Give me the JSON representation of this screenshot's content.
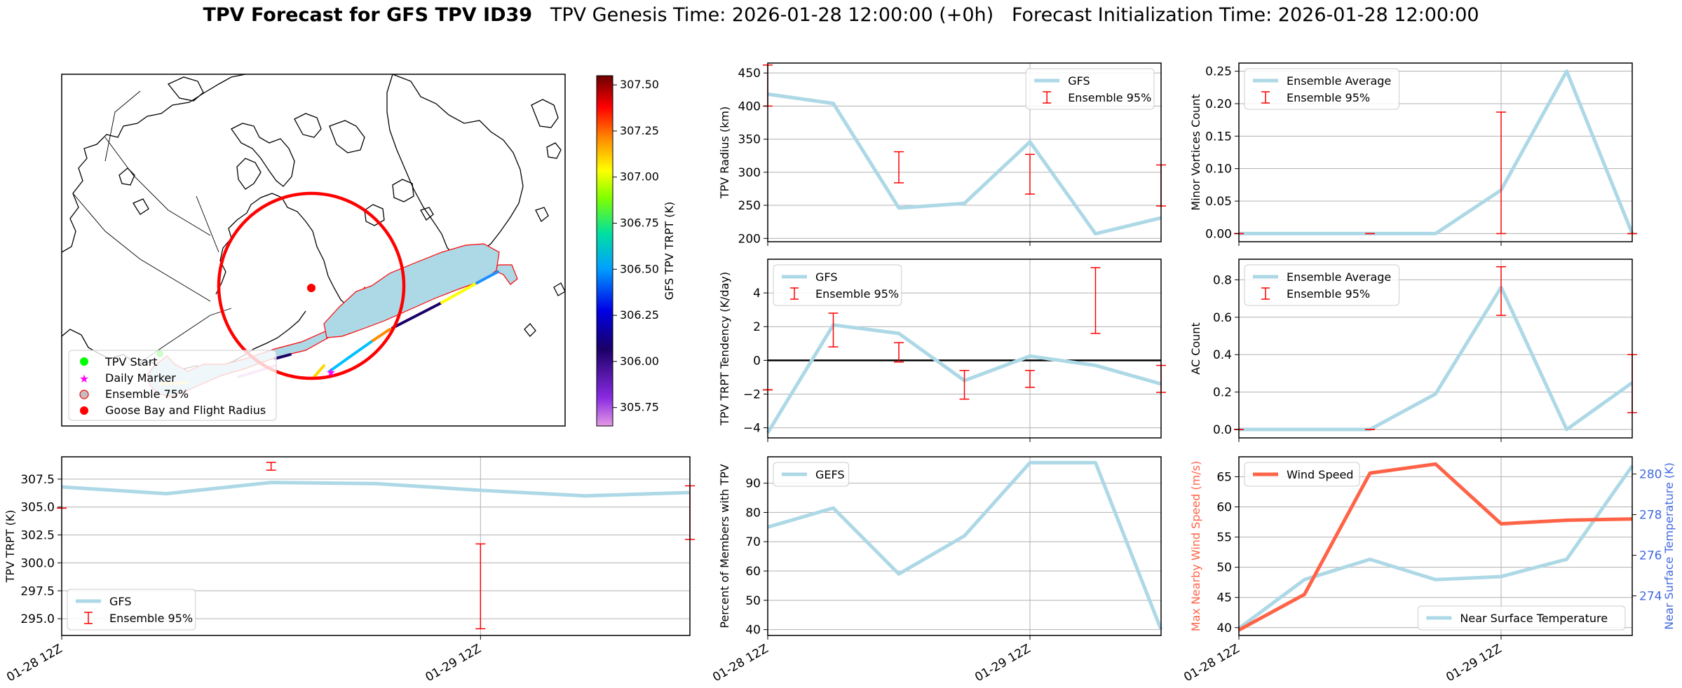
{
  "figure": {
    "title_bold": "TPV Forecast for GFS TPV ID39",
    "title_genesis": "TPV Genesis Time: 2026-01-28 12:00:00 (+0h)",
    "title_init": "Forecast Initialization Time: 2026-01-28 12:00:00"
  },
  "colors": {
    "gfs_line": "#add8e6",
    "errorbar": "#ff0000",
    "wind": "#ff6347",
    "temp_axis": "#4169e1",
    "grid": "#b0b0b0"
  },
  "map": {
    "legend": [
      "TPV Start",
      "Daily Marker",
      "Ensemble 75%",
      "Goose Bay and Flight Radius"
    ],
    "colorbar": {
      "label": "GFS TPV TRPT (K)",
      "min": 305.65,
      "max": 307.55,
      "ticks": [
        305.75,
        306.0,
        306.25,
        306.5,
        306.75,
        307.0,
        307.25,
        307.5
      ],
      "tick_labels": [
        "305.75",
        "306.00",
        "306.25",
        "306.50",
        "306.75",
        "307.00",
        "307.25",
        "307.50"
      ]
    }
  },
  "chart_data": [
    {
      "id": "radius",
      "type": "line",
      "ylabel": "TPV Radius (km)",
      "ylim": [
        195,
        465
      ],
      "yticks": [
        200,
        250,
        300,
        350,
        400,
        450
      ],
      "ytick_labels": [
        "200",
        "250",
        "300",
        "350",
        "400",
        "450"
      ],
      "xticklabels": [],
      "legend": [
        "GFS",
        "Ensemble 95%"
      ],
      "legend_pos": "top-right",
      "x": [
        0,
        1,
        2,
        3,
        4,
        5,
        6
      ],
      "values": [
        418,
        404,
        246,
        253,
        346,
        207,
        231
      ],
      "errorbars": [
        {
          "x": 0,
          "low": 400,
          "high": 462
        },
        {
          "x": 2,
          "low": 284,
          "high": 331
        },
        {
          "x": 4,
          "low": 267,
          "high": 327
        },
        {
          "x": 6,
          "low": 249,
          "high": 311
        }
      ]
    },
    {
      "id": "minor",
      "type": "line",
      "ylabel": "Minor Vortices Count",
      "ylim": [
        -0.0125,
        0.2625
      ],
      "yticks": [
        0,
        0.05,
        0.1,
        0.15,
        0.2,
        0.25
      ],
      "ytick_labels": [
        "0.00",
        "0.05",
        "0.10",
        "0.15",
        "0.20",
        "0.25"
      ],
      "xticklabels": [],
      "legend": [
        "Ensemble Average",
        "Ensemble 95%"
      ],
      "legend_pos": "top-left",
      "x": [
        0,
        1,
        2,
        3,
        4,
        5,
        6
      ],
      "values": [
        0,
        0,
        0,
        0,
        0.067,
        0.25,
        0
      ],
      "errorbars": [
        {
          "x": 0,
          "low": 0,
          "high": 0
        },
        {
          "x": 2,
          "low": 0,
          "high": 0
        },
        {
          "x": 4,
          "low": 0,
          "high": 0.187
        },
        {
          "x": 6,
          "low": 0,
          "high": 0
        }
      ]
    },
    {
      "id": "tendency",
      "type": "line",
      "ylabel": "TPV TRPT Tendency (K/day)",
      "ylim": [
        -4.6,
        6.0
      ],
      "yticks": [
        -4,
        -2,
        0,
        2,
        4
      ],
      "ytick_labels": [
        "−4",
        "−2",
        "0",
        "2",
        "4"
      ],
      "xticklabels": [],
      "legend": [
        "GFS",
        "Ensemble 95%"
      ],
      "legend_pos": "top-left",
      "zero_line": true,
      "x": [
        0,
        1,
        2,
        3,
        4,
        5,
        6
      ],
      "values": [
        -4.3,
        2.1,
        1.6,
        -1.2,
        0.25,
        -0.3,
        -1.4
      ],
      "errorbars": [
        {
          "x": 0,
          "low": -1.75,
          "high": -1.75
        },
        {
          "x": 1,
          "low": 0.8,
          "high": 2.8
        },
        {
          "x": 2,
          "low": -0.1,
          "high": 1.05
        },
        {
          "x": 3,
          "low": -2.3,
          "high": -0.6
        },
        {
          "x": 4,
          "low": -1.6,
          "high": -0.6
        },
        {
          "x": 5,
          "low": 1.6,
          "high": 5.5
        },
        {
          "x": 6,
          "low": -1.9,
          "high": -0.3
        }
      ]
    },
    {
      "id": "ac",
      "type": "line",
      "ylabel": "AC Count",
      "ylim": [
        -0.045,
        0.91
      ],
      "yticks": [
        0,
        0.2,
        0.4,
        0.6,
        0.8
      ],
      "ytick_labels": [
        "0.0",
        "0.2",
        "0.4",
        "0.6",
        "0.8"
      ],
      "xticklabels": [],
      "legend": [
        "Ensemble Average",
        "Ensemble 95%"
      ],
      "legend_pos": "top-left",
      "x": [
        0,
        1,
        2,
        3,
        4,
        5,
        6
      ],
      "values": [
        0,
        0,
        0,
        0.19,
        0.76,
        0,
        0.25
      ],
      "errorbars": [
        {
          "x": 0,
          "low": 0,
          "high": 0
        },
        {
          "x": 2,
          "low": 0,
          "high": 0
        },
        {
          "x": 4,
          "low": 0.61,
          "high": 0.87
        },
        {
          "x": 6,
          "low": 0.09,
          "high": 0.4
        }
      ]
    },
    {
      "id": "trpt",
      "type": "line",
      "ylabel": "TPV TRPT (K)",
      "ylim": [
        293.5,
        309.5
      ],
      "yticks": [
        295,
        297.5,
        300,
        302.5,
        305,
        307.5
      ],
      "ytick_labels": [
        "295.0",
        "297.5",
        "300.0",
        "302.5",
        "305.0",
        "307.5"
      ],
      "xticklabels": [
        "01-28 12Z",
        "01-29 12Z"
      ],
      "legend": [
        "GFS",
        "Ensemble 95%"
      ],
      "legend_pos": "bottom-left",
      "x": [
        0,
        1,
        2,
        3,
        4,
        5,
        6
      ],
      "values": [
        306.8,
        306.2,
        307.2,
        307.1,
        306.5,
        306.0,
        306.3
      ],
      "errorbars": [
        {
          "x": 0,
          "low": 304.9,
          "high": 304.9
        },
        {
          "x": 2,
          "low": 308.3,
          "high": 309.0
        },
        {
          "x": 4,
          "low": 294.1,
          "high": 301.7
        },
        {
          "x": 6,
          "low": 302.1,
          "high": 306.9
        }
      ]
    },
    {
      "id": "members",
      "type": "line",
      "ylabel": "Percent of Members with TPV",
      "ylim": [
        38,
        99
      ],
      "yticks": [
        40,
        50,
        60,
        70,
        80,
        90
      ],
      "ytick_labels": [
        "40",
        "50",
        "60",
        "70",
        "80",
        "90"
      ],
      "xticklabels": [
        "01-28 12Z",
        "01-29 12Z"
      ],
      "legend": [
        "GEFS"
      ],
      "legend_pos": "top-left",
      "x": [
        0,
        1,
        2,
        3,
        4,
        5,
        6
      ],
      "values": [
        75,
        81.5,
        59,
        72,
        97,
        97,
        40
      ],
      "errorbars": []
    },
    {
      "id": "wind",
      "type": "line",
      "ylabel": "Max Nearby Wind Speed (m/s)",
      "ylim": [
        38.7,
        68.3
      ],
      "yticks": [
        40,
        45,
        50,
        55,
        60,
        65
      ],
      "ytick_labels": [
        "40",
        "45",
        "50",
        "55",
        "60",
        "65"
      ],
      "xticklabels": [
        "01-28 12Z",
        "01-29 12Z"
      ],
      "legend": [
        "Wind Speed"
      ],
      "legend_pos": "top-left",
      "x": [
        0,
        1,
        2,
        3,
        4,
        5,
        6
      ],
      "values": [
        39.6,
        45.5,
        65.6,
        67.1,
        57.2,
        57.8,
        58
      ],
      "secondary": {
        "label": "Near Surface Temperature",
        "ylabel": "Near Surface Temperature (K)",
        "legend_pos": "bottom-right",
        "ylim": [
          272.05,
          280.85
        ],
        "yticks": [
          274,
          276,
          278,
          280
        ],
        "ytick_labels": [
          "274",
          "276",
          "278",
          "280"
        ],
        "values": [
          272.4,
          274.8,
          275.8,
          274.8,
          274.95,
          275.8,
          280.4
        ]
      }
    }
  ]
}
